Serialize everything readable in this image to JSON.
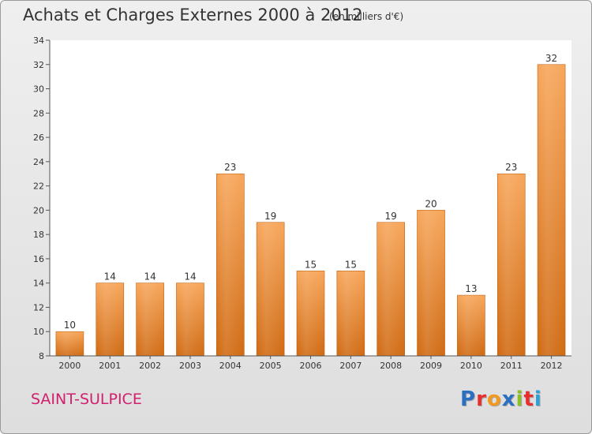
{
  "header": {
    "title": "Achats et Charges Externes 2000 à 2012",
    "subtitle": "(en milliers d'€)"
  },
  "footer": {
    "city": "SAINT-SULPICE",
    "logo_letters": [
      "P",
      "r",
      "o",
      "x",
      "i",
      "t",
      "i"
    ],
    "logo_colors": [
      "#2a6fc2",
      "#e63030",
      "#f29a1f",
      "#2a6fc2",
      "#8cbf26",
      "#e63030",
      "#2aa0d8"
    ]
  },
  "chart_data": {
    "type": "bar",
    "categories": [
      "2000",
      "2001",
      "2002",
      "2003",
      "2004",
      "2005",
      "2006",
      "2007",
      "2008",
      "2009",
      "2010",
      "2011",
      "2012"
    ],
    "values": [
      10,
      14,
      14,
      14,
      23,
      19,
      15,
      15,
      19,
      20,
      13,
      23,
      32
    ],
    "data_labels": [
      "10",
      "14",
      "14",
      "14",
      "23",
      "19",
      "15",
      "15",
      "19",
      "20",
      "13",
      "23",
      "32"
    ],
    "y_ticks": [
      "8",
      "10",
      "12",
      "14",
      "16",
      "18",
      "20",
      "22",
      "24",
      "26",
      "28",
      "30",
      "32",
      "34"
    ],
    "ylim": [
      8,
      34
    ],
    "grid": false,
    "bar_color_top": "#f7a65a",
    "bar_color_bottom": "#d06a12"
  }
}
